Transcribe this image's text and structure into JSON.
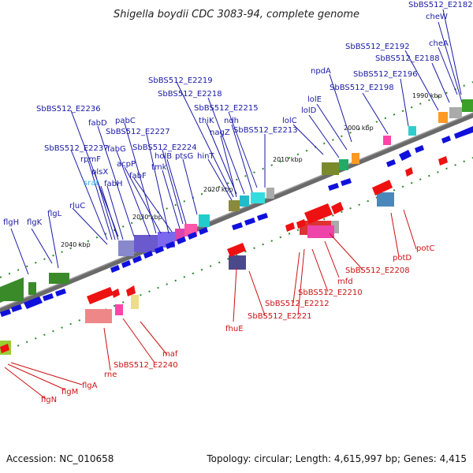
{
  "header": {
    "title": "Shigella boydii CDC 3083-94, complete genome"
  },
  "footer": {
    "accession": "Accession: NC_010658",
    "summary": "Topology: circular; Length: 4,615,997 bp; Genes: 4,415"
  },
  "kbp_labels": [
    "1990 kbp",
    "2000 kbp",
    "2010 kbp",
    "2020 kbp",
    "2030 kbp",
    "2040 kbp"
  ],
  "top_labels": [
    "SbBS512_E2182",
    "cheW",
    "cheA",
    "SbBS512_E2192",
    "SbBS512_E2188",
    "SbBS512_E2196",
    "SbBS512_E2198",
    "npdA",
    "lolE",
    "lolD",
    "lolC",
    "SbBS512_E2213",
    "SbBS512_E2215",
    "ndh",
    "nagZ",
    "thiK",
    "SbBS512_E2218",
    "SbBS512_E2219",
    "hinT",
    "ptsG",
    "holB",
    "tmk",
    "SbBS512_E2224",
    "fabF",
    "SbBS512_E2227",
    "pabC",
    "acpP",
    "fabG",
    "fabD",
    "SbBS512_E2236",
    "SbBS512_E2237",
    "rpmF",
    "plsX",
    "srat",
    "fabH",
    "rluC",
    "flgL",
    "flgK",
    "flgH"
  ],
  "bottom_labels": [
    "potC",
    "potD",
    "SbBS512_E2208",
    "mfd",
    "SbBS512_E2210",
    "SbBS512_E2212",
    "SbBS512_E2221",
    "fhuE",
    "maf",
    "SbBS512_E2240",
    "rne",
    "flgA",
    "flgM",
    "flgN"
  ]
}
